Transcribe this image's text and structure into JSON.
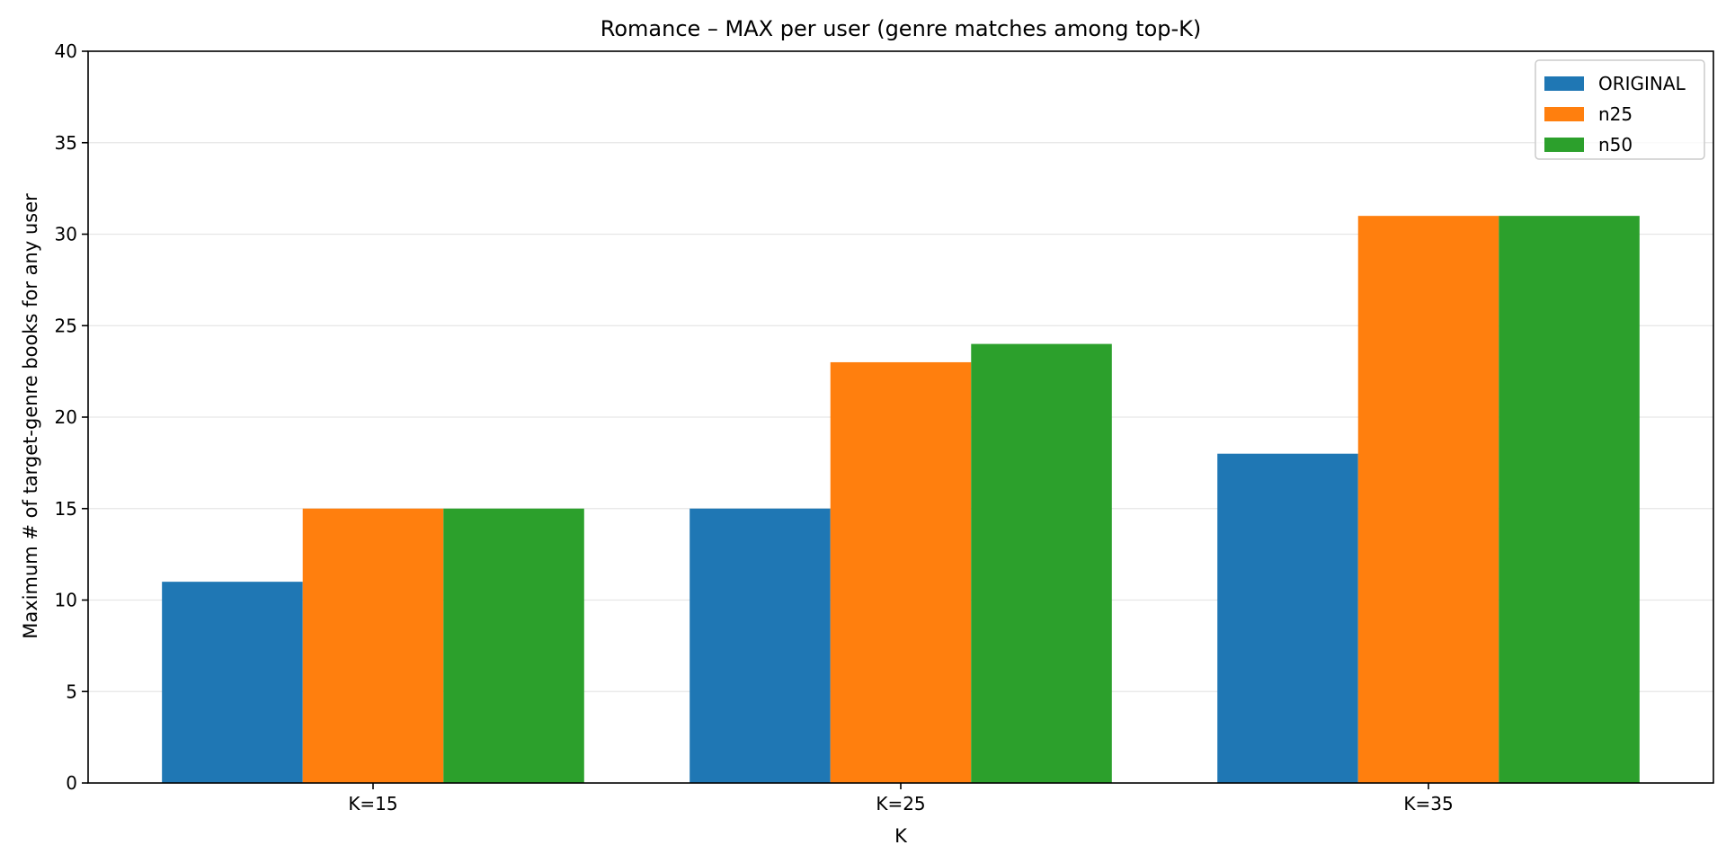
{
  "chart_data": {
    "type": "bar",
    "title": "Romance – MAX per user (genre matches among top-K)",
    "xlabel": "K",
    "ylabel": "Maximum # of target-genre books for any user",
    "categories": [
      "K=15",
      "K=25",
      "K=35"
    ],
    "series": [
      {
        "name": "ORIGINAL",
        "color": "#1f77b4",
        "values": [
          11,
          15,
          18
        ]
      },
      {
        "name": "n25",
        "color": "#ff7f0e",
        "values": [
          15,
          23,
          31
        ]
      },
      {
        "name": "n50",
        "color": "#2ca02c",
        "values": [
          15,
          24,
          31
        ]
      }
    ],
    "ylim": [
      0,
      40
    ],
    "yticks": [
      "0",
      "5",
      "10",
      "15",
      "20",
      "25",
      "30",
      "35",
      "40"
    ],
    "grid": "y-axis",
    "legend_position": "top-right"
  }
}
